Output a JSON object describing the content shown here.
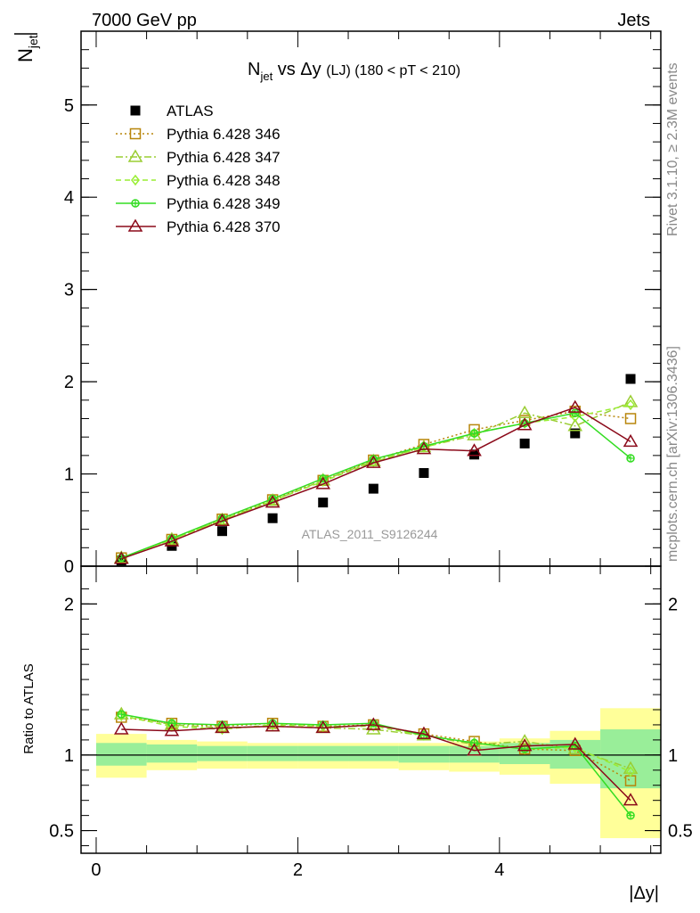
{
  "header": {
    "left": "7000 GeV pp",
    "right": "Jets"
  },
  "side_text": {
    "top": "Rivet 3.1.10, ≥ 2.3M events",
    "bottom": "mcplots.cern.ch [arXiv:1306.3436]"
  },
  "watermark": "ATLAS_2011_S9126244",
  "main_title": {
    "prefix": "N",
    "sub": "jet",
    "mid": " vs Δy ",
    "small": "(LJ) (180 < pT < 210)"
  },
  "ylabel_top": {
    "main": "N",
    "sub": "jet"
  },
  "ylabel_ratio": "Ratio to ATLAS",
  "xlabel": "|Δy|",
  "chart_data": [
    {
      "type": "scatter",
      "panel": "main",
      "xlim": [
        -0.15,
        5.6
      ],
      "ylim": [
        0,
        5.8
      ],
      "x_ticks": [
        0,
        2,
        4
      ],
      "y_ticks": [
        0,
        1,
        2,
        3,
        4,
        5
      ],
      "x": [
        0.25,
        0.75,
        1.25,
        1.75,
        2.25,
        2.75,
        3.25,
        3.75,
        4.25,
        4.75,
        5.3
      ],
      "bin_edges": [
        0,
        0.5,
        1.0,
        1.5,
        2.0,
        2.5,
        3.0,
        3.5,
        4.0,
        4.5,
        5.0,
        5.6
      ],
      "series": [
        {
          "name": "ATLAS",
          "color": "#000000",
          "marker": "square-filled",
          "line": "none",
          "values": [
            0.06,
            0.22,
            0.38,
            0.52,
            0.69,
            0.84,
            1.01,
            1.21,
            1.33,
            1.44,
            2.03
          ]
        },
        {
          "name": "Pythia 6.428 346",
          "color": "#b8860b",
          "marker": "square-open",
          "line": "dotted",
          "values": [
            0.09,
            0.29,
            0.51,
            0.72,
            0.93,
            1.15,
            1.32,
            1.48,
            1.58,
            1.68,
            1.6
          ]
        },
        {
          "name": "Pythia 6.428 347",
          "color": "#9acd32",
          "marker": "triangle-open",
          "line": "dashdot",
          "values": [
            0.09,
            0.29,
            0.5,
            0.71,
            0.93,
            1.14,
            1.29,
            1.42,
            1.66,
            1.52,
            1.78
          ]
        },
        {
          "name": "Pythia 6.428 348",
          "color": "#99ee33",
          "marker": "diamond-open",
          "line": "dashed",
          "values": [
            0.09,
            0.29,
            0.5,
            0.71,
            0.92,
            1.13,
            1.29,
            1.44,
            1.55,
            1.62,
            1.75
          ]
        },
        {
          "name": "Pythia 6.428 349",
          "color": "#33dd22",
          "marker": "circle-cross",
          "line": "solid",
          "values": [
            0.09,
            0.3,
            0.52,
            0.73,
            0.95,
            1.16,
            1.3,
            1.44,
            1.55,
            1.66,
            1.17
          ]
        },
        {
          "name": "Pythia 6.428 370",
          "color": "#8b0a1a",
          "marker": "triangle-open",
          "line": "solid",
          "values": [
            0.08,
            0.27,
            0.49,
            0.69,
            0.89,
            1.12,
            1.27,
            1.25,
            1.53,
            1.72,
            1.35
          ]
        }
      ],
      "legend_placement": "top-left"
    },
    {
      "type": "scatter",
      "panel": "ratio",
      "ylim": [
        0.35,
        2.25
      ],
      "y_ticks": [
        0.5,
        1,
        2
      ],
      "uncertainty_bands": {
        "inner": [
          [
            0.93,
            1.08
          ],
          [
            0.95,
            1.07
          ],
          [
            0.96,
            1.06
          ],
          [
            0.96,
            1.06
          ],
          [
            0.96,
            1.06
          ],
          [
            0.96,
            1.06
          ],
          [
            0.95,
            1.06
          ],
          [
            0.95,
            1.06
          ],
          [
            0.94,
            1.08
          ],
          [
            0.91,
            1.1
          ],
          [
            0.78,
            1.17
          ]
        ],
        "outer": [
          [
            0.85,
            1.14
          ],
          [
            0.9,
            1.1
          ],
          [
            0.91,
            1.09
          ],
          [
            0.91,
            1.08
          ],
          [
            0.91,
            1.08
          ],
          [
            0.91,
            1.08
          ],
          [
            0.9,
            1.08
          ],
          [
            0.89,
            1.09
          ],
          [
            0.87,
            1.11
          ],
          [
            0.81,
            1.16
          ],
          [
            0.45,
            1.31
          ]
        ]
      },
      "series": [
        {
          "name": "Pythia 6.428 346",
          "values": [
            1.25,
            1.21,
            1.19,
            1.21,
            1.19,
            1.2,
            1.14,
            1.09,
            1.04,
            1.03,
            0.83
          ]
        },
        {
          "name": "Pythia 6.428 347",
          "values": [
            1.27,
            1.2,
            1.18,
            1.19,
            1.18,
            1.17,
            1.13,
            1.07,
            1.09,
            1.04,
            0.91
          ]
        },
        {
          "name": "Pythia 6.428 348",
          "values": [
            1.26,
            1.19,
            1.17,
            1.2,
            1.19,
            1.19,
            1.13,
            1.08,
            1.04,
            1.05,
            0.89
          ]
        },
        {
          "name": "Pythia 6.428 349",
          "values": [
            1.27,
            1.21,
            1.2,
            1.21,
            1.2,
            1.21,
            1.13,
            1.08,
            1.04,
            1.06,
            0.6
          ]
        },
        {
          "name": "Pythia 6.428 370",
          "values": [
            1.17,
            1.16,
            1.18,
            1.19,
            1.18,
            1.2,
            1.14,
            1.03,
            1.06,
            1.07,
            0.7
          ]
        }
      ]
    }
  ]
}
